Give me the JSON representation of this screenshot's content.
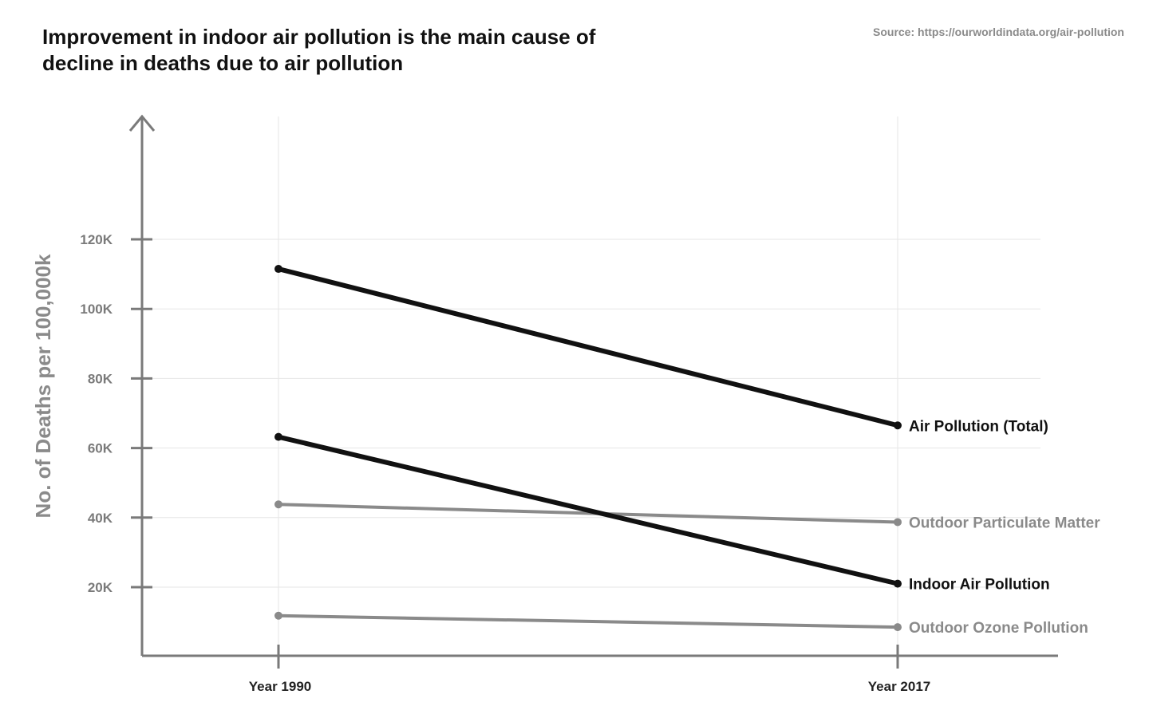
{
  "title": "Improvement in indoor air pollution is the main cause of decline in deaths due to air pollution",
  "source": "Source: https://ourworldindata.org/air-pollution",
  "chart_data": {
    "type": "line",
    "x": [
      "Year 1990",
      "Year 2017"
    ],
    "ylabel": "No. of Deaths per 100,000k",
    "ylim": [
      0,
      155000
    ],
    "yticks": [
      {
        "value": 20000,
        "label": "20K"
      },
      {
        "value": 40000,
        "label": "40K"
      },
      {
        "value": 60000,
        "label": "60K"
      },
      {
        "value": 80000,
        "label": "80K"
      },
      {
        "value": 100000,
        "label": "100K"
      },
      {
        "value": 120000,
        "label": "120K"
      }
    ],
    "grid": true,
    "legend": "none",
    "series": [
      {
        "name": "Air Pollution (Total)",
        "values": [
          111500,
          66500
        ],
        "color": "#111111"
      },
      {
        "name": "Outdoor Particulate Matter",
        "values": [
          43800,
          38700
        ],
        "color": "#8a8a8a"
      },
      {
        "name": "Indoor Air Pollution",
        "values": [
          63200,
          21000
        ],
        "color": "#111111"
      },
      {
        "name": "Outdoor Ozone Pollution",
        "values": [
          11800,
          8500
        ],
        "color": "#8a8a8a"
      }
    ]
  }
}
